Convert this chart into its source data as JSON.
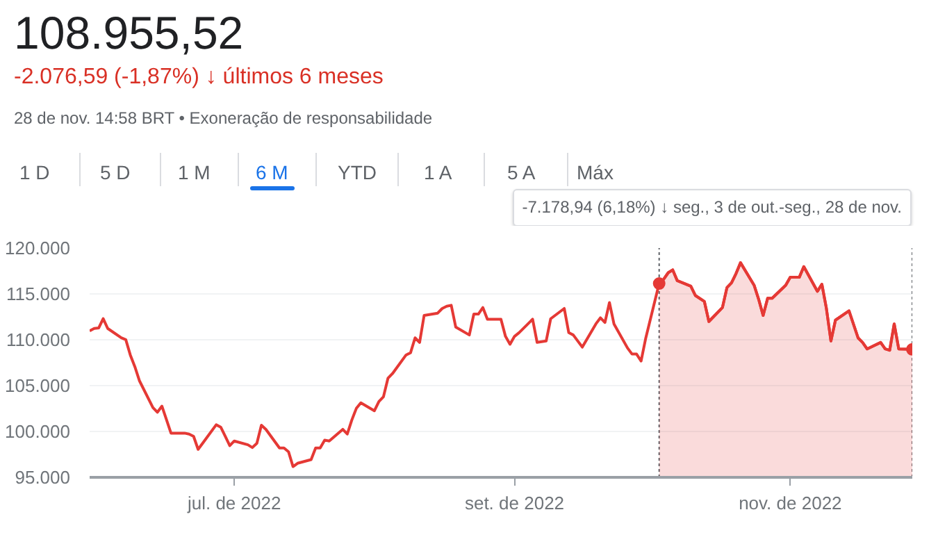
{
  "chart_data": {
    "type": "line",
    "title": "108.955,52",
    "subtitle": "-2.076,59 (-1,87%) ↓ últimos 6 meses",
    "annotations": [
      "28 de nov. 14:58 BRT • Exoneração de responsabilidade",
      "1 D",
      "5 D",
      "1 M",
      "6 M",
      "YTD",
      "1 A",
      "5 A",
      "Máx"
    ],
    "x": [
      "2022-05-30",
      "2022-05-31",
      "2022-06-01",
      "2022-06-02",
      "2022-06-03",
      "2022-06-06",
      "2022-06-07",
      "2022-06-08",
      "2022-06-09",
      "2022-06-10",
      "2022-06-13",
      "2022-06-14",
      "2022-06-15",
      "2022-06-17",
      "2022-06-20",
      "2022-06-21",
      "2022-06-22",
      "2022-06-23",
      "2022-06-24",
      "2022-06-27",
      "2022-06-28",
      "2022-06-29",
      "2022-06-30",
      "2022-07-01",
      "2022-07-04",
      "2022-07-05",
      "2022-07-06",
      "2022-07-07",
      "2022-07-08",
      "2022-07-11",
      "2022-07-12",
      "2022-07-13",
      "2022-07-14",
      "2022-07-15",
      "2022-07-18",
      "2022-07-19",
      "2022-07-20",
      "2022-07-21",
      "2022-07-22",
      "2022-07-25",
      "2022-07-26",
      "2022-07-27",
      "2022-07-28",
      "2022-07-29",
      "2022-08-01",
      "2022-08-02",
      "2022-08-03",
      "2022-08-04",
      "2022-08-05",
      "2022-08-08",
      "2022-08-09",
      "2022-08-10",
      "2022-08-11",
      "2022-08-12",
      "2022-08-15",
      "2022-08-16",
      "2022-08-17",
      "2022-08-18",
      "2022-08-19",
      "2022-08-22",
      "2022-08-23",
      "2022-08-24",
      "2022-08-25",
      "2022-08-26",
      "2022-08-29",
      "2022-08-30",
      "2022-08-31",
      "2022-09-01",
      "2022-09-02",
      "2022-09-05",
      "2022-09-06",
      "2022-09-08",
      "2022-09-09",
      "2022-09-12",
      "2022-09-13",
      "2022-09-14",
      "2022-09-15",
      "2022-09-16",
      "2022-09-19",
      "2022-09-20",
      "2022-09-21",
      "2022-09-22",
      "2022-09-23",
      "2022-09-26",
      "2022-09-27",
      "2022-09-28",
      "2022-09-29",
      "2022-09-30",
      "2022-10-03",
      "2022-10-04",
      "2022-10-05",
      "2022-10-06",
      "2022-10-07",
      "2022-10-10",
      "2022-10-11",
      "2022-10-13",
      "2022-10-14",
      "2022-10-17",
      "2022-10-18",
      "2022-10-19",
      "2022-10-20",
      "2022-10-21",
      "2022-10-24",
      "2022-10-25",
      "2022-10-26",
      "2022-10-27",
      "2022-10-28",
      "2022-10-31",
      "2022-11-01",
      "2022-11-03",
      "2022-11-04",
      "2022-11-07",
      "2022-11-08",
      "2022-11-09",
      "2022-11-10",
      "2022-11-11",
      "2022-11-14",
      "2022-11-16",
      "2022-11-17",
      "2022-11-18",
      "2022-11-21",
      "2022-11-22",
      "2022-11-23",
      "2022-11-24",
      "2022-11-25",
      "2022-11-28"
    ],
    "series": [
      {
        "color": "#e53935",
        "values": [
          110970,
          111230,
          111280,
          112300,
          111230,
          110210,
          110010,
          108340,
          107070,
          105550,
          102610,
          102100,
          102760,
          99820,
          99820,
          99720,
          99470,
          98050,
          98710,
          100730,
          100480,
          99470,
          98450,
          98960,
          98550,
          98250,
          98710,
          100680,
          100230,
          98200,
          98200,
          97790,
          96170,
          96530,
          96930,
          98200,
          98200,
          99060,
          98960,
          100230,
          99720,
          101240,
          102510,
          103120,
          102260,
          103270,
          103780,
          105800,
          106310,
          108340,
          108590,
          110210,
          109710,
          112650,
          112900,
          113410,
          113660,
          113760,
          111380,
          110520,
          112800,
          112800,
          113510,
          112240,
          112240,
          110370,
          109510,
          110370,
          110770,
          112240,
          109710,
          109860,
          112290,
          113410,
          110770,
          110520,
          109860,
          109200,
          111730,
          112390,
          111880,
          114060,
          111730,
          109100,
          108440,
          108440,
          107680,
          110110,
          116134.46,
          116600,
          117310,
          117620,
          116450,
          115840,
          114830,
          114170,
          111990,
          113510,
          115690,
          116200,
          117210,
          118400,
          115950,
          114430,
          112650,
          114530,
          114530,
          115950,
          116810,
          116810,
          117970,
          115280,
          116050,
          113410,
          109860,
          112140,
          113160,
          110210,
          109710,
          109000,
          109710,
          109000,
          108850,
          111730,
          109000,
          108955.52
        ]
      },
      {
        "type": "area",
        "color": "#e53935",
        "x": [
          "2022-10-03",
          "2022-10-04",
          "2022-10-05",
          "2022-10-06",
          "2022-10-07",
          "2022-10-10",
          "2022-10-11",
          "2022-10-13",
          "2022-10-14",
          "2022-10-17",
          "2022-10-18",
          "2022-10-19",
          "2022-10-20",
          "2022-10-21",
          "2022-10-24",
          "2022-10-25",
          "2022-10-26",
          "2022-10-27",
          "2022-10-28",
          "2022-10-31",
          "2022-11-01",
          "2022-11-03",
          "2022-11-04",
          "2022-11-07",
          "2022-11-08",
          "2022-11-09",
          "2022-11-10",
          "2022-11-11",
          "2022-11-14",
          "2022-11-16",
          "2022-11-17",
          "2022-11-18",
          "2022-11-21",
          "2022-11-22",
          "2022-11-23",
          "2022-11-24",
          "2022-11-25",
          "2022-11-28"
        ],
        "values": [
          116134.46,
          116600,
          117310,
          117620,
          116450,
          115840,
          114830,
          114170,
          111990,
          113510,
          115690,
          116200,
          117210,
          118400,
          115950,
          114430,
          112650,
          114530,
          114530,
          115950,
          116810,
          116810,
          117970,
          115280,
          116050,
          113410,
          109860,
          112140,
          113160,
          110210,
          109710,
          109000,
          109710,
          109000,
          108850,
          111730,
          109000,
          108955.52
        ]
      }
    ],
    "xlim": [
      "2022-05-30",
      "2022-11-28"
    ],
    "xticks": [
      {
        "value": "2022-07-01",
        "label": "jul. de 2022"
      },
      {
        "value": "2022-09-01",
        "label": "set. de 2022"
      },
      {
        "value": "2022-11-01",
        "label": "nov. de 2022"
      }
    ],
    "ylim": [
      95000,
      120000
    ],
    "yticks": [
      {
        "value": 95000,
        "label": "95.000"
      },
      {
        "value": 100000,
        "label": "100.000"
      },
      {
        "value": 105000,
        "label": "105.000"
      },
      {
        "value": 110000,
        "label": "110.000"
      },
      {
        "value": 115000,
        "label": "115.000"
      },
      {
        "value": 120000,
        "label": "120.000"
      }
    ],
    "ref_lines": [
      {
        "axis": "x",
        "value": "2022-10-03",
        "color": "#5f6368",
        "line_style": "dotted"
      },
      {
        "axis": "x",
        "value": "2022-11-28",
        "color": "#5f6368",
        "line_style": "dotted",
        "label": "-7.178,94 (6,18%) ↓ seg., 3 de out.-seg., 28 de nov."
      }
    ],
    "grid": "y"
  }
}
